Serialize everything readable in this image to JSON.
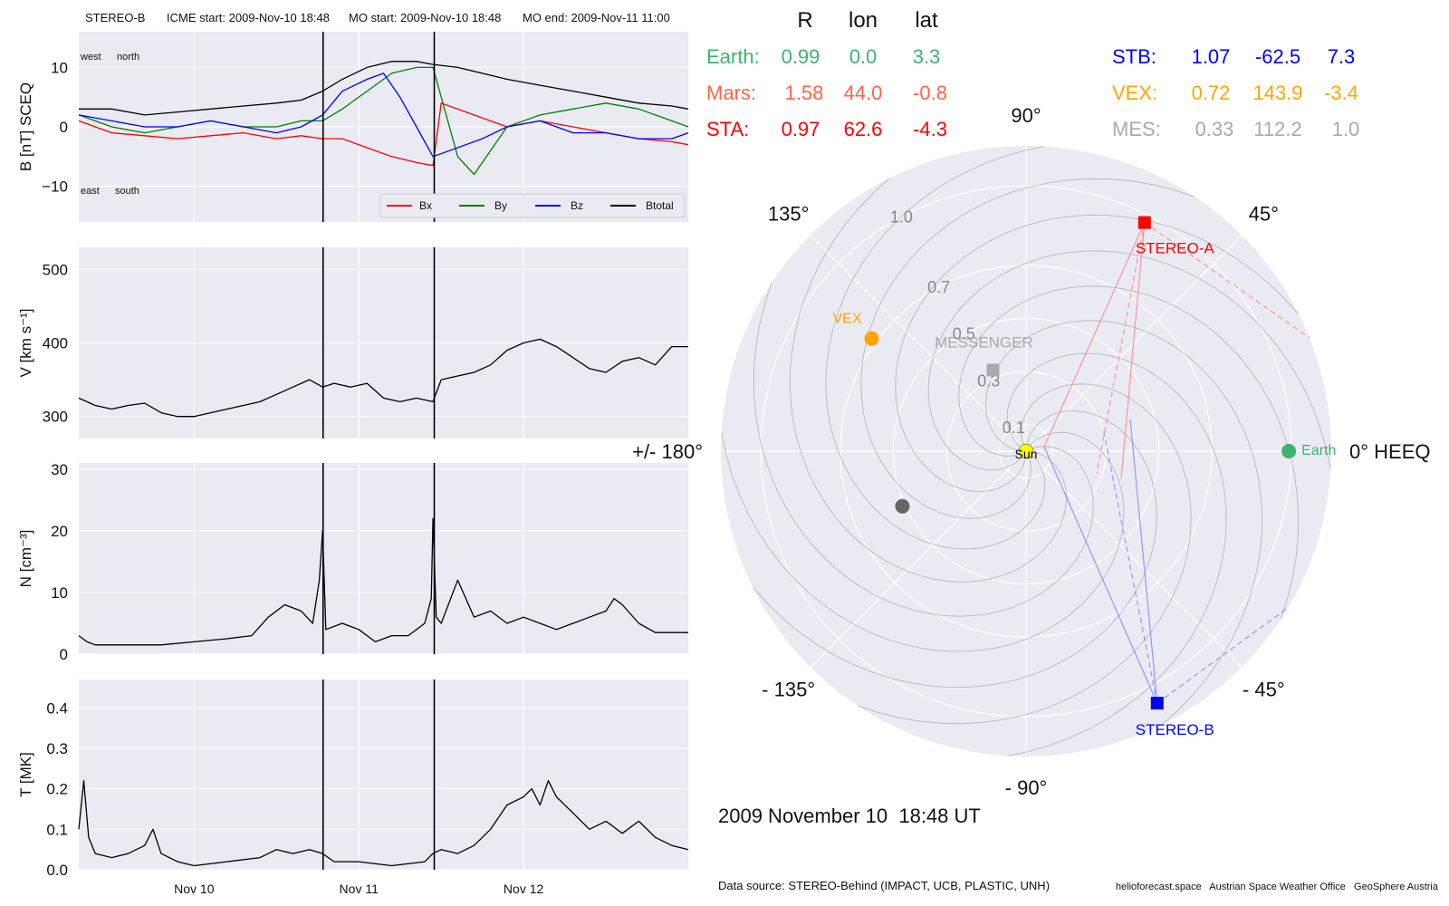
{
  "header": {
    "spacecraft": "STEREO-B",
    "icme_start": "ICME start: 2009-Nov-10 18:48",
    "mo_start": "MO start: 2009-Nov-10 18:48",
    "mo_end": "MO end: 2009-Nov-11 11:00"
  },
  "colors": {
    "panel_bg": "#eaeaf2",
    "grid": "#ffffff",
    "Bx": "#ff0000",
    "By": "#008000",
    "Bz": "#0000ff",
    "Btotal": "#000000",
    "earth": "#3cb371",
    "mars": "#ff6347",
    "sta": "#ff0000",
    "stb": "#0000ff",
    "vex": "#ffa500",
    "mes": "#a9a9a9",
    "sun": "#ffff00"
  },
  "chart_data": [
    {
      "type": "line",
      "name": "magnetic-field",
      "ylabel": "B [nT] SCEQ",
      "ylim": [
        -16,
        16
      ],
      "yticks": [
        10,
        0,
        -10
      ],
      "ytick_labels": [
        "10",
        "0",
        "−10"
      ],
      "xlim_days": [
        9.3,
        13.0
      ],
      "xtick_days": [
        10.0,
        11.0,
        12.0
      ],
      "xtick_labels": [
        "Nov 10",
        "Nov 11",
        "Nov 12"
      ],
      "event_lines_days": [
        10.783,
        11.458
      ],
      "annotations": {
        "top_left": [
          "west",
          "north"
        ],
        "bottom_left": [
          "east",
          "south"
        ]
      },
      "legend": {
        "placement": "lower-right",
        "entries": [
          "Bx",
          "By",
          "Bz",
          "Btotal"
        ]
      },
      "series": [
        {
          "name": "Bx",
          "x": [
            9.3,
            9.5,
            9.7,
            9.9,
            10.1,
            10.3,
            10.5,
            10.65,
            10.78,
            10.9,
            11.05,
            11.2,
            11.35,
            11.45,
            11.5,
            11.7,
            11.9,
            12.1,
            12.3,
            12.5,
            12.7,
            12.9,
            13.0
          ],
          "y": [
            1,
            -1,
            -1.5,
            -2,
            -1.5,
            -1,
            -2,
            -1.5,
            -2,
            -2,
            -3.5,
            -5,
            -6,
            -6.5,
            4,
            2,
            0,
            1,
            0,
            -1,
            -2,
            -2.5,
            -3
          ]
        },
        {
          "name": "By",
          "x": [
            9.3,
            9.5,
            9.7,
            9.9,
            10.1,
            10.3,
            10.5,
            10.65,
            10.78,
            10.9,
            11.05,
            11.2,
            11.35,
            11.45,
            11.6,
            11.7,
            11.9,
            12.1,
            12.3,
            12.5,
            12.7,
            12.9,
            13.0
          ],
          "y": [
            2,
            0,
            -1,
            0,
            1,
            0,
            0,
            1,
            1,
            3,
            6,
            9,
            10,
            10,
            -5,
            -8,
            0,
            2,
            3,
            4,
            3,
            1,
            0
          ]
        },
        {
          "name": "Bz",
          "x": [
            9.3,
            9.5,
            9.7,
            9.9,
            10.1,
            10.3,
            10.5,
            10.65,
            10.78,
            10.9,
            11.05,
            11.15,
            11.25,
            11.35,
            11.45,
            11.55,
            11.65,
            11.75,
            11.9,
            12.1,
            12.3,
            12.5,
            12.7,
            12.9,
            13.0
          ],
          "y": [
            2,
            1,
            0,
            0,
            1,
            0,
            -1,
            0,
            2,
            6,
            8,
            9,
            5,
            0,
            -5,
            -4,
            -3,
            -2,
            0,
            1,
            -1,
            -1,
            -2,
            -2,
            -1
          ]
        },
        {
          "name": "Btotal",
          "x": [
            9.3,
            9.5,
            9.7,
            9.9,
            10.1,
            10.3,
            10.5,
            10.65,
            10.78,
            10.9,
            11.05,
            11.2,
            11.35,
            11.45,
            11.6,
            11.75,
            11.9,
            12.1,
            12.3,
            12.5,
            12.7,
            12.9,
            13.0
          ],
          "y": [
            3,
            3,
            2,
            2.5,
            3,
            3.5,
            4,
            4.5,
            6,
            8,
            10,
            11,
            11,
            10.5,
            10,
            9,
            8,
            7,
            6,
            5,
            4,
            3.5,
            3
          ]
        }
      ]
    },
    {
      "type": "line",
      "name": "speed",
      "ylabel": "V [km s⁻¹]",
      "ylim": [
        270,
        530
      ],
      "yticks": [
        500,
        400,
        300
      ],
      "ytick_labels": [
        "500",
        "400",
        "300"
      ],
      "xlim_days": [
        9.3,
        13.0
      ],
      "xtick_days": [
        10.0,
        11.0,
        12.0
      ],
      "event_lines_days": [
        10.783,
        11.458
      ],
      "series": [
        {
          "name": "V",
          "x": [
            9.3,
            9.4,
            9.5,
            9.6,
            9.7,
            9.8,
            9.9,
            10.0,
            10.1,
            10.2,
            10.3,
            10.4,
            10.5,
            10.6,
            10.7,
            10.78,
            10.85,
            10.95,
            11.05,
            11.15,
            11.25,
            11.35,
            11.45,
            11.5,
            11.6,
            11.7,
            11.8,
            11.9,
            12.0,
            12.1,
            12.2,
            12.3,
            12.4,
            12.5,
            12.6,
            12.7,
            12.8,
            12.9,
            13.0
          ],
          "y": [
            325,
            315,
            310,
            315,
            318,
            305,
            300,
            300,
            305,
            310,
            315,
            320,
            330,
            340,
            350,
            340,
            345,
            340,
            345,
            325,
            320,
            325,
            320,
            350,
            355,
            360,
            370,
            390,
            400,
            405,
            395,
            380,
            365,
            360,
            375,
            380,
            370,
            395,
            395
          ]
        }
      ]
    },
    {
      "type": "line",
      "name": "density",
      "ylabel": "N [cm⁻³]",
      "ylim": [
        0,
        31
      ],
      "yticks": [
        30,
        20,
        10,
        0
      ],
      "ytick_labels": [
        "30",
        "20",
        "10",
        "0"
      ],
      "xlim_days": [
        9.3,
        13.0
      ],
      "xtick_days": [
        10.0,
        11.0,
        12.0
      ],
      "event_lines_days": [
        10.783,
        11.458
      ],
      "series": [
        {
          "name": "N",
          "x": [
            9.3,
            9.35,
            9.4,
            9.6,
            9.8,
            10.0,
            10.2,
            10.35,
            10.45,
            10.55,
            10.65,
            10.72,
            10.76,
            10.78,
            10.8,
            10.9,
            11.0,
            11.1,
            11.2,
            11.3,
            11.4,
            11.44,
            11.45,
            11.47,
            11.5,
            11.6,
            11.7,
            11.8,
            11.9,
            12.0,
            12.1,
            12.2,
            12.3,
            12.4,
            12.5,
            12.55,
            12.6,
            12.7,
            12.8,
            12.9,
            13.0
          ],
          "y": [
            3,
            2,
            1.5,
            1.5,
            1.5,
            2,
            2.5,
            3,
            6,
            8,
            7,
            5,
            12,
            20,
            4,
            5,
            4,
            2,
            3,
            3,
            5,
            9,
            22,
            6,
            5,
            12,
            6,
            7,
            5,
            6,
            5,
            4,
            5,
            6,
            7,
            9,
            8,
            5,
            3.5,
            3.5,
            3.5
          ]
        }
      ]
    },
    {
      "type": "line",
      "name": "temperature",
      "ylabel": "T [MK]",
      "ylim": [
        0,
        0.47
      ],
      "yticks": [
        0.4,
        0.3,
        0.2,
        0.1,
        0.0
      ],
      "ytick_labels": [
        "0.4",
        "0.3",
        "0.2",
        "0.1",
        "0.0"
      ],
      "xlim_days": [
        9.3,
        13.0
      ],
      "xtick_days": [
        10.0,
        11.0,
        12.0
      ],
      "xtick_labels": [
        "Nov 10",
        "Nov 11",
        "Nov 12"
      ],
      "event_lines_days": [
        10.783,
        11.458
      ],
      "series": [
        {
          "name": "T",
          "x": [
            9.3,
            9.33,
            9.36,
            9.4,
            9.5,
            9.6,
            9.7,
            9.75,
            9.8,
            9.9,
            10.0,
            10.2,
            10.4,
            10.5,
            10.6,
            10.7,
            10.78,
            10.85,
            11.0,
            11.2,
            11.4,
            11.45,
            11.5,
            11.6,
            11.7,
            11.8,
            11.9,
            12.0,
            12.05,
            12.1,
            12.15,
            12.2,
            12.3,
            12.4,
            12.5,
            12.6,
            12.7,
            12.8,
            12.9,
            13.0
          ],
          "y": [
            0.1,
            0.22,
            0.08,
            0.04,
            0.03,
            0.04,
            0.06,
            0.1,
            0.04,
            0.02,
            0.01,
            0.02,
            0.03,
            0.05,
            0.04,
            0.05,
            0.04,
            0.02,
            0.02,
            0.01,
            0.02,
            0.04,
            0.05,
            0.04,
            0.06,
            0.1,
            0.16,
            0.18,
            0.2,
            0.16,
            0.22,
            0.18,
            0.14,
            0.1,
            0.12,
            0.09,
            0.12,
            0.08,
            0.06,
            0.05
          ]
        }
      ]
    },
    {
      "type": "scatter",
      "name": "polar-position-plot",
      "coordinates": "HEEQ longitude (deg) and radial distance (AU)",
      "radial_tick_labels": [
        "0.1",
        "0.3",
        "0.5",
        "0.7",
        "1.0"
      ],
      "radial_tick_values": [
        0.1,
        0.3,
        0.5,
        0.7,
        1.0
      ],
      "rmax": 1.15,
      "angle_tick_values": [
        0,
        45,
        90,
        135,
        180,
        -135,
        -90,
        -45
      ],
      "angle_labels": [
        "0° HEEQ",
        "45°",
        "90°",
        "135°",
        "+/- 180°",
        "- 135°",
        "- 90°",
        "- 45°"
      ],
      "bodies": [
        {
          "name": "Sun",
          "r": 0.0,
          "lon": 0.0,
          "marker": "circle",
          "color_key": "sun"
        },
        {
          "name": "Earth",
          "r": 0.99,
          "lon": 0.0,
          "marker": "circle",
          "color_key": "earth"
        },
        {
          "name": "STEREO-A",
          "r": 0.97,
          "lon": 62.6,
          "marker": "square",
          "color_key": "sta"
        },
        {
          "name": "STEREO-B",
          "r": 1.07,
          "lon": -62.5,
          "marker": "square",
          "color_key": "stb"
        },
        {
          "name": "VEX",
          "r": 0.72,
          "lon": 143.9,
          "marker": "circle",
          "color_key": "vex"
        },
        {
          "name": "MESSENGER",
          "r": 0.33,
          "lon": 112.2,
          "marker": "square",
          "color_key": "mes"
        },
        {
          "name": "",
          "r": 0.51,
          "lon": -156.0,
          "marker": "circle",
          "color_key": "mes_dark"
        }
      ],
      "position_table": {
        "headers": [
          "R",
          "lon",
          "lat"
        ],
        "rows": [
          {
            "label": "Earth:",
            "values": [
              "0.99",
              "0.0",
              "3.3"
            ],
            "color_key": "earth"
          },
          {
            "label": "Mars:",
            "values": [
              "1.58",
              "44.0",
              "-0.8"
            ],
            "color_key": "mars"
          },
          {
            "label": "STA:",
            "values": [
              "0.97",
              "62.6",
              "-4.3"
            ],
            "color_key": "sta"
          },
          {
            "label": "STB:",
            "values": [
              "1.07",
              "-62.5",
              "7.3"
            ],
            "color_key": "stb"
          },
          {
            "label": "VEX:",
            "values": [
              "0.72",
              "143.9",
              "-3.4"
            ],
            "color_key": "vex"
          },
          {
            "label": "MES:",
            "values": [
              "0.33",
              "112.2",
              "1.0"
            ],
            "color_key": "mes"
          }
        ]
      }
    }
  ],
  "footer": {
    "timestamp": "2009 November 10  18:48 UT",
    "data_source": "Data source: STEREO-Behind (IMPACT, UCB, PLASTIC, UNH)",
    "credits": "helioforecast.space   Austrian Space Weather Office   GeoSphere Austria"
  }
}
